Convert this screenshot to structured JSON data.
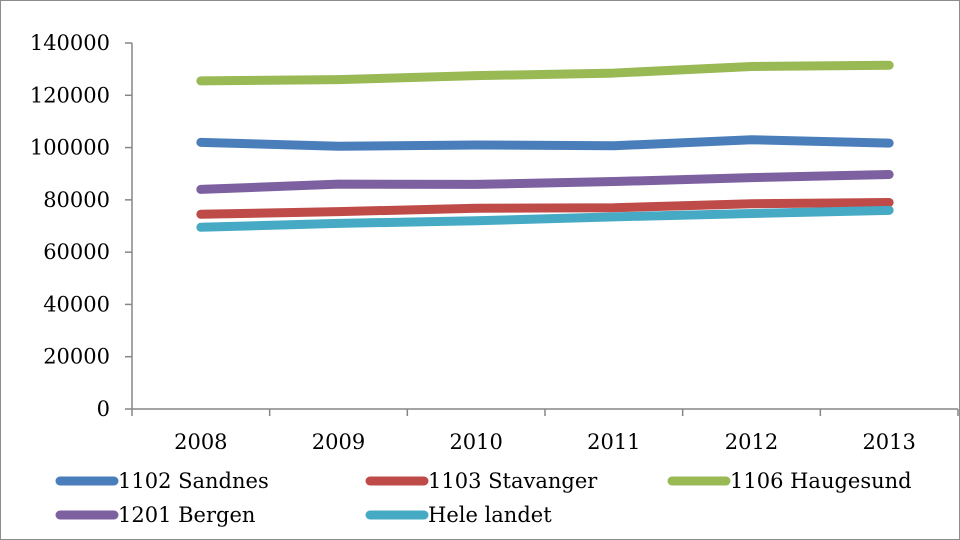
{
  "chart_data": {
    "type": "line",
    "title": "",
    "xlabel": "",
    "ylabel": "",
    "categories": [
      "2008",
      "2009",
      "2010",
      "2011",
      "2012",
      "2013"
    ],
    "ylim": [
      0,
      140000
    ],
    "yticks": [
      0,
      20000,
      40000,
      60000,
      80000,
      100000,
      120000,
      140000
    ],
    "ytick_labels": [
      "0",
      "20000",
      "40000",
      "60000",
      "80000",
      "100000",
      "120000",
      "140000"
    ],
    "grid": false,
    "legend_position": "bottom",
    "series": [
      {
        "name": "1102 Sandnes",
        "color": "#4a7ebb",
        "values": [
          102000,
          100500,
          101000,
          100700,
          103000,
          101700
        ]
      },
      {
        "name": "1103 Stavanger",
        "color": "#be4b48",
        "values": [
          74500,
          75500,
          76800,
          77000,
          78500,
          79000
        ]
      },
      {
        "name": "1106 Haugesund",
        "color": "#98b954",
        "values": [
          125500,
          126000,
          127500,
          128500,
          131000,
          131500
        ]
      },
      {
        "name": "1201 Bergen",
        "color": "#7d60a0",
        "values": [
          84000,
          86000,
          85900,
          87000,
          88500,
          89700
        ]
      },
      {
        "name": "Hele landet",
        "color": "#46aac5",
        "values": [
          69500,
          71000,
          72000,
          73500,
          74800,
          76000
        ]
      }
    ]
  }
}
